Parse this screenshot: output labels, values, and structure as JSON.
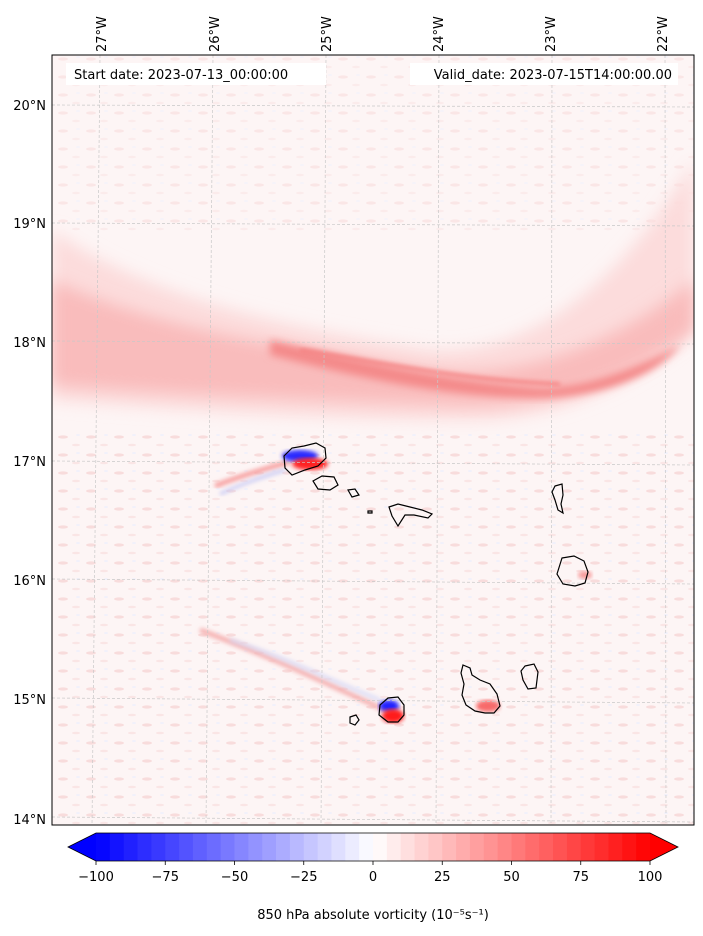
{
  "header": {
    "start_date": "Start date: 2023-07-13_00:00:00",
    "valid_date": "Valid_date: 2023-07-15T14:00:00.00"
  },
  "map": {
    "lon_labels": [
      "27°W",
      "26°W",
      "25°W",
      "24°W",
      "23°W",
      "22°W"
    ],
    "lat_labels": [
      "20°N",
      "19°N",
      "18°N",
      "17°N",
      "16°N",
      "15°N",
      "14°N"
    ],
    "islands": [
      "Santo Antão",
      "São Vicente",
      "Santa Luzia",
      "Branco",
      "São Nicolau",
      "Sal",
      "Boa Vista",
      "Santiago",
      "Maio",
      "Fogo",
      "Brava"
    ]
  },
  "colorbar": {
    "ticks": [
      "−100",
      "−75",
      "−50",
      "−25",
      "0",
      "25",
      "50",
      "75",
      "100"
    ],
    "label": "850 hPa absolute vorticity (10⁻⁵s⁻¹)",
    "min": -100,
    "max": 100,
    "neg_color": "#0000ff",
    "pos_color": "#ff0000",
    "mid_color": "#ffffff"
  }
}
